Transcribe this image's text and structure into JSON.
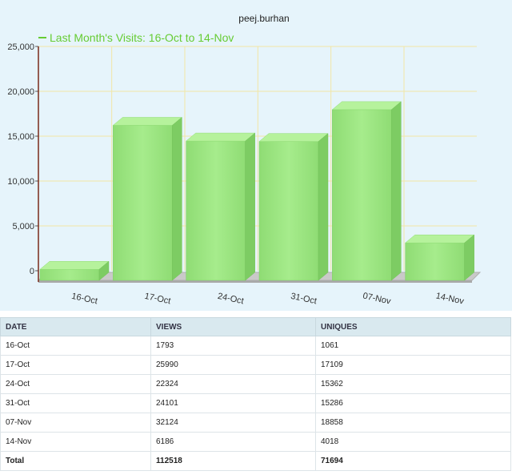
{
  "chart_data": {
    "type": "bar",
    "title": "peej.burhan",
    "legend": "Last Month's Visits: 16-Oct to 14-Nov",
    "legend_position": "top-left",
    "categories": [
      "16-Oct",
      "17-Oct",
      "24-Oct",
      "31-Oct",
      "07-Nov",
      "14-Nov"
    ],
    "series": [
      {
        "name": "Last Month's Visits: 16-Oct to 14-Nov",
        "values": [
          1050,
          17100,
          15350,
          15300,
          18850,
          4000
        ]
      }
    ],
    "ylim": [
      0,
      25000
    ],
    "yticks": [
      0,
      5000,
      10000,
      15000,
      20000,
      25000
    ],
    "ytick_labels": [
      "0",
      "5,000",
      "10,000",
      "15,000",
      "20,000",
      "25,000"
    ],
    "grid": true,
    "colors": {
      "bar": "#9be680",
      "legend": "#66cc33",
      "grid": "#f2e6a6",
      "background": "#e6f4fb"
    }
  },
  "table": {
    "headers": [
      "DATE",
      "VIEWS",
      "UNIQUES"
    ],
    "rows": [
      [
        "16-Oct",
        "1793",
        "1061"
      ],
      [
        "17-Oct",
        "25990",
        "17109"
      ],
      [
        "24-Oct",
        "22324",
        "15362"
      ],
      [
        "31-Oct",
        "24101",
        "15286"
      ],
      [
        "07-Nov",
        "32124",
        "18858"
      ],
      [
        "14-Nov",
        "6186",
        "4018"
      ]
    ],
    "total": [
      "Total",
      "112518",
      "71694"
    ]
  }
}
